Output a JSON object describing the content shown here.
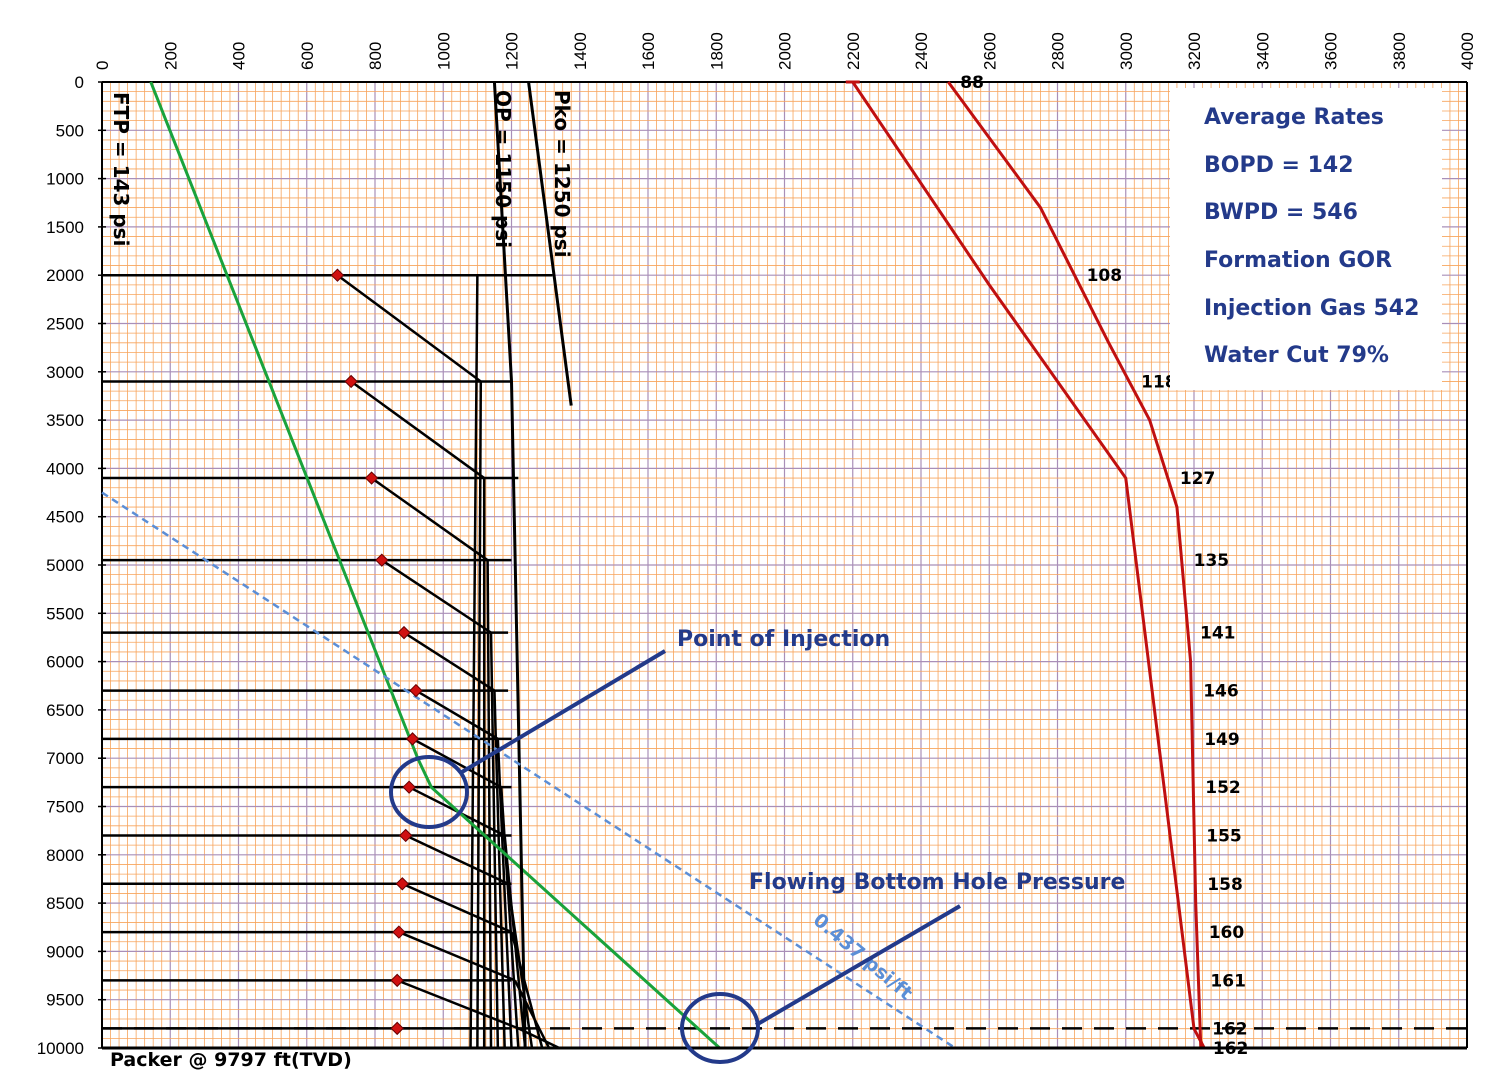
{
  "chart_data": {
    "type": "line",
    "x_axis": {
      "min": 0,
      "max": 4000,
      "ticks": [
        0,
        200,
        400,
        600,
        800,
        1000,
        1200,
        1400,
        1600,
        1800,
        2000,
        2200,
        2400,
        2600,
        2800,
        3000,
        3200,
        3400,
        3600,
        3800,
        4000
      ]
    },
    "y_axis": {
      "min": 0,
      "max": 10000,
      "inverted": true,
      "ticks": [
        0,
        500,
        1000,
        1500,
        2000,
        2500,
        3000,
        3500,
        4000,
        4500,
        5000,
        5500,
        6000,
        6500,
        7000,
        7500,
        8000,
        8500,
        9000,
        9500,
        10000
      ]
    },
    "grid": true,
    "colors": {
      "grid_minor": "#f7a45c",
      "grid_major": "#a98fb8",
      "green": "#1aa33c",
      "red": "#c01010",
      "blue": "#233a8a",
      "dashed_blue": "#5b8ed6"
    },
    "series": [
      {
        "label": "FTP = 143 psi",
        "color": "green",
        "points": [
          [
            143,
            0
          ],
          [
            925,
            7000
          ],
          [
            965,
            7300
          ],
          [
            1810,
            10000
          ]
        ]
      },
      {
        "label": "OP = 1150 psi",
        "color": "black",
        "points": [
          [
            1150,
            0
          ],
          [
            1200,
            3100
          ],
          [
            1240,
            10000
          ]
        ]
      },
      {
        "label": "Pko = 1250 psi",
        "color": "black",
        "points": [
          [
            1250,
            0
          ],
          [
            1375,
            3350
          ]
        ]
      },
      {
        "label": "",
        "color": "dashed_blue",
        "points": [
          [
            0,
            4250
          ],
          [
            2500,
            10000
          ]
        ]
      }
    ],
    "red_curves": [
      {
        "points": [
          [
            2200,
            0
          ],
          [
            2600,
            2100
          ],
          [
            3000,
            4100
          ],
          [
            3200,
            9800
          ],
          [
            3230,
            10000
          ]
        ]
      },
      {
        "points": [
          [
            2480,
            0
          ],
          [
            2750,
            1300
          ],
          [
            2950,
            2700
          ],
          [
            3070,
            3500
          ],
          [
            3150,
            4400
          ],
          [
            3190,
            6000
          ],
          [
            3205,
            8500
          ],
          [
            3220,
            10000
          ]
        ]
      }
    ],
    "red_point_labels": [
      "88",
      "108",
      "118",
      "127",
      "135",
      "141",
      "146",
      "149",
      "152",
      "155",
      "158",
      "160",
      "161",
      "162",
      "162"
    ],
    "red_point_depths": [
      0,
      2000,
      3100,
      4100,
      4950,
      5700,
      6300,
      6800,
      7300,
      7800,
      8300,
      8800,
      9300,
      9797,
      10000
    ],
    "valve_depths": [
      2000,
      3100,
      4100,
      4950,
      5700,
      6300,
      6800,
      7300,
      7800,
      8300,
      8800,
      9300,
      9797
    ],
    "valve_markers": [
      [
        690,
        2000
      ],
      [
        730,
        3100
      ],
      [
        790,
        4100
      ],
      [
        820,
        4950
      ],
      [
        885,
        5700
      ],
      [
        920,
        6300
      ],
      [
        910,
        6800
      ],
      [
        900,
        7300
      ],
      [
        890,
        7800
      ],
      [
        880,
        8300
      ],
      [
        870,
        8800
      ],
      [
        865,
        9300
      ],
      [
        865,
        9797
      ]
    ],
    "valve_line_ends": [
      1320,
      1200,
      1220,
      1200,
      1190,
      1190,
      1200,
      1200,
      1200,
      1200,
      1200,
      1200,
      1200
    ],
    "fan_line_tops": [
      1100,
      1110,
      1120,
      1130,
      1140,
      1150,
      1160,
      1170,
      1180,
      1190,
      1200,
      1210,
      1220
    ],
    "fan_line_bottoms": [
      1080,
      1100,
      1120,
      1140,
      1160,
      1180,
      1200,
      1220,
      1240,
      1260,
      1290,
      1310,
      1340
    ],
    "packer_depth": 9797,
    "annotations": {
      "ftp": "FTP = 143 psi",
      "op": "OP = 1150 psi",
      "pko": "Pko = 1250 psi",
      "point_of_injection": "Point of Injection",
      "fbhp": "Flowing Bottom Hole Pressure",
      "gradient": "0.437 psi/ft",
      "packer": "Packer @  9797 ft(TVD)"
    },
    "info_box": {
      "lines": [
        "Average Rates",
        "BOPD = 142",
        "BWPD = 546",
        "Formation GOR",
        "Injection Gas 542",
        "Water Cut 79%"
      ]
    }
  }
}
